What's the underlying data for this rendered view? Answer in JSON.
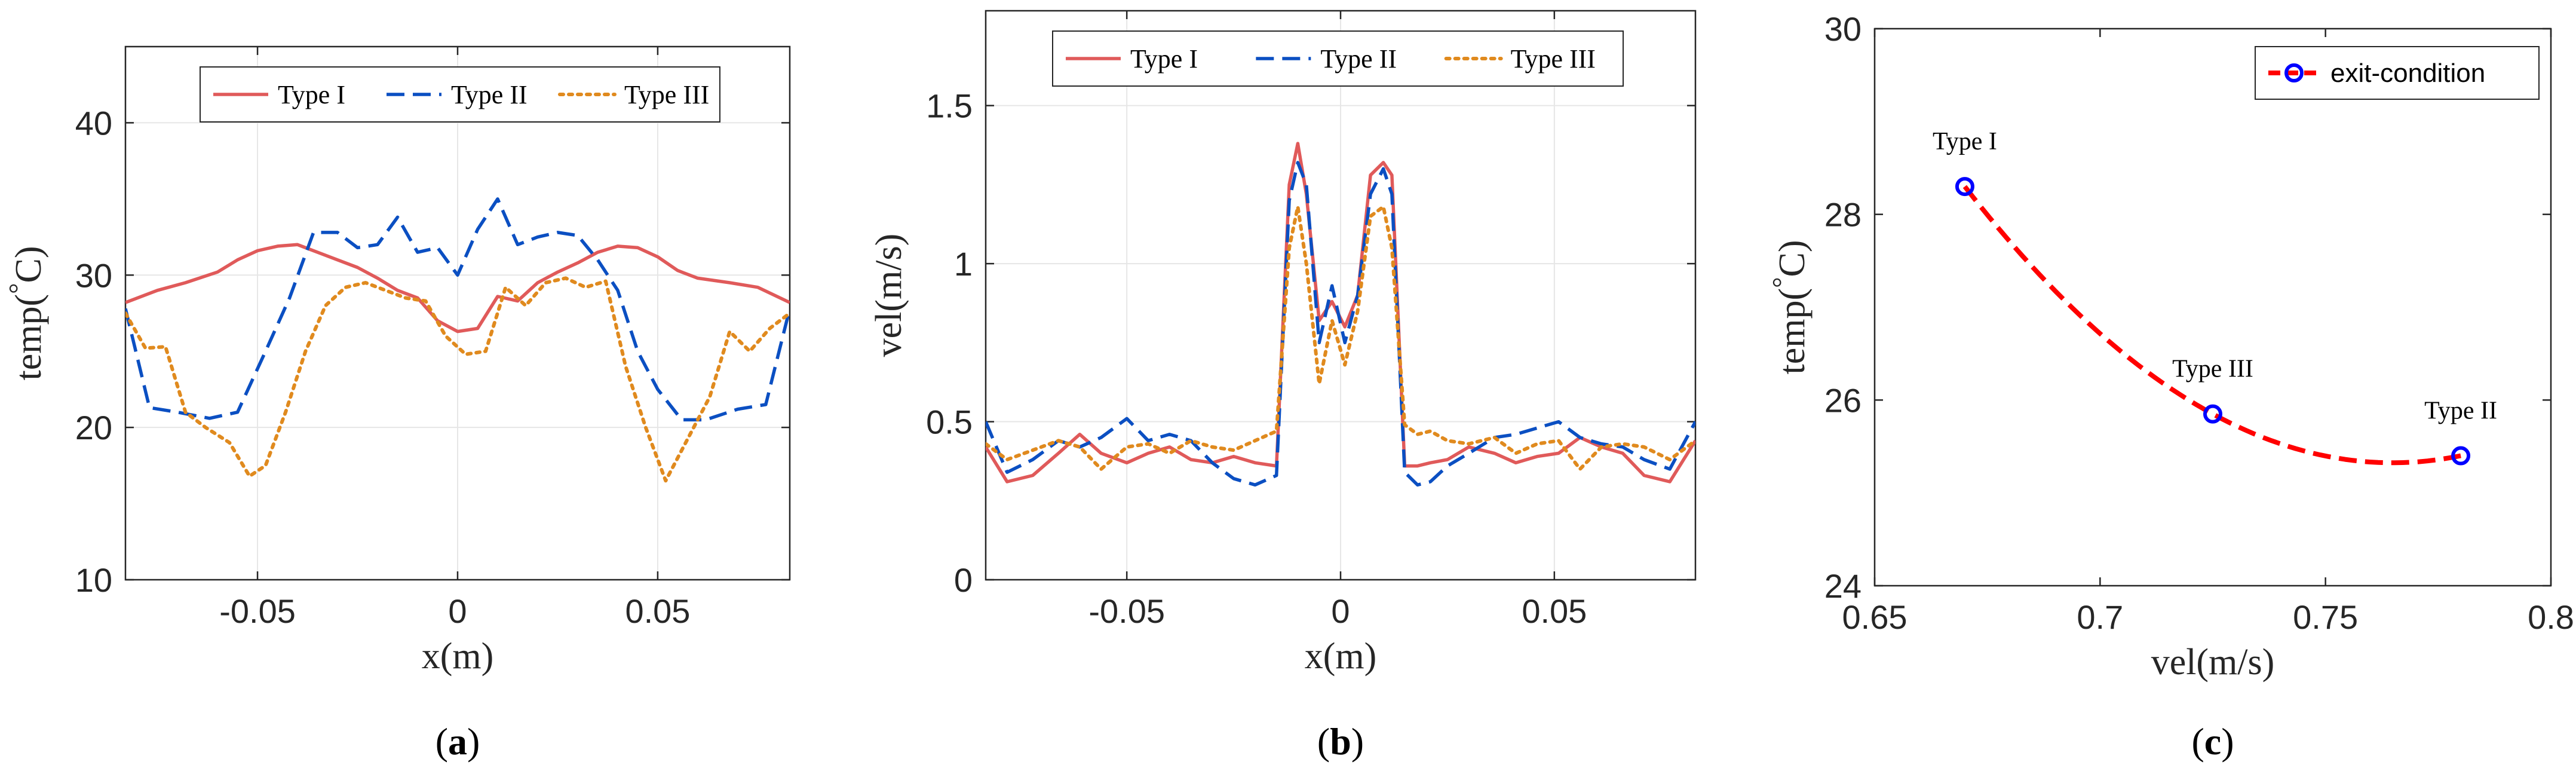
{
  "chart_data": [
    {
      "type": "line",
      "caption": "a",
      "xlabel": "x(m)",
      "ylabel": "temp(°C)",
      "ylabel_main": "temp(",
      "ylabel_degree": "°",
      "ylabel_unit": "C)",
      "xlim": [
        -0.083,
        0.083
      ],
      "ylim": [
        10,
        45
      ],
      "xticks": [
        -0.05,
        0,
        0.05
      ],
      "xtick_labels": [
        "-0.05",
        "0",
        "0.05"
      ],
      "yticks": [
        10,
        20,
        30,
        40
      ],
      "ytick_labels": [
        "10",
        "20",
        "30",
        "40"
      ],
      "grid": true,
      "legend_position": "top-center",
      "series": [
        {
          "name": "Type I",
          "color": "#e05a5a",
          "style": "solid",
          "x": [
            -0.083,
            -0.075,
            -0.068,
            -0.06,
            -0.055,
            -0.05,
            -0.045,
            -0.04,
            -0.035,
            -0.03,
            -0.025,
            -0.02,
            -0.015,
            -0.01,
            -0.005,
            0,
            0.005,
            0.01,
            0.015,
            0.02,
            0.025,
            0.03,
            0.035,
            0.04,
            0.045,
            0.05,
            0.055,
            0.06,
            0.068,
            0.075,
            0.083
          ],
          "values": [
            28.2,
            29.0,
            29.5,
            30.2,
            31.0,
            31.6,
            31.9,
            32.0,
            31.5,
            31.0,
            30.5,
            29.8,
            29.0,
            28.5,
            27.0,
            26.3,
            26.5,
            28.6,
            28.3,
            29.5,
            30.2,
            30.8,
            31.5,
            31.9,
            31.8,
            31.2,
            30.3,
            29.8,
            29.5,
            29.2,
            28.2
          ]
        },
        {
          "name": "Type II",
          "color": "#0b4fc2",
          "style": "dashed",
          "x": [
            -0.083,
            -0.077,
            -0.07,
            -0.062,
            -0.055,
            -0.048,
            -0.042,
            -0.036,
            -0.03,
            -0.025,
            -0.02,
            -0.015,
            -0.01,
            -0.005,
            0,
            0.005,
            0.01,
            0.015,
            0.02,
            0.025,
            0.03,
            0.035,
            0.04,
            0.045,
            0.05,
            0.056,
            0.062,
            0.07,
            0.077,
            0.083
          ],
          "values": [
            27.8,
            21.3,
            21.0,
            20.6,
            21.0,
            25.0,
            28.5,
            32.8,
            32.8,
            31.8,
            32.0,
            33.8,
            31.5,
            31.8,
            30.0,
            33.0,
            35.0,
            32.0,
            32.5,
            32.8,
            32.6,
            31.0,
            29.0,
            25.0,
            22.5,
            20.5,
            20.5,
            21.2,
            21.5,
            27.8
          ]
        },
        {
          "name": "Type III",
          "color": "#e08a1e",
          "style": "dotted",
          "x": [
            -0.083,
            -0.078,
            -0.073,
            -0.068,
            -0.063,
            -0.057,
            -0.052,
            -0.048,
            -0.043,
            -0.038,
            -0.033,
            -0.028,
            -0.023,
            -0.018,
            -0.013,
            -0.008,
            -0.003,
            0.002,
            0.007,
            0.012,
            0.017,
            0.022,
            0.027,
            0.032,
            0.037,
            0.042,
            0.047,
            0.052,
            0.057,
            0.063,
            0.068,
            0.073,
            0.078,
            0.083
          ],
          "values": [
            27.5,
            25.2,
            25.3,
            21.0,
            20.0,
            19.0,
            16.8,
            17.5,
            21.0,
            25.0,
            28.0,
            29.2,
            29.5,
            29.0,
            28.5,
            28.3,
            26.0,
            24.8,
            25.0,
            29.2,
            28.0,
            29.5,
            29.8,
            29.2,
            29.6,
            24.0,
            20.0,
            16.5,
            19.0,
            22.0,
            26.3,
            25.0,
            26.5,
            27.5
          ]
        }
      ]
    },
    {
      "type": "line",
      "caption": "b",
      "xlabel": "x(m)",
      "ylabel": "vel(m/s)",
      "xlim": [
        -0.083,
        0.083
      ],
      "ylim": [
        0,
        1.8
      ],
      "xticks": [
        -0.05,
        0,
        0.05
      ],
      "xtick_labels": [
        "-0.05",
        "0",
        "0.05"
      ],
      "yticks": [
        0,
        0.5,
        1,
        1.5
      ],
      "ytick_labels": [
        "0",
        "0.5",
        "1",
        "1.5"
      ],
      "grid": true,
      "legend_position": "top-center",
      "series": [
        {
          "name": "Type I",
          "color": "#e05a5a",
          "style": "solid",
          "x": [
            -0.083,
            -0.078,
            -0.072,
            -0.066,
            -0.061,
            -0.056,
            -0.05,
            -0.045,
            -0.04,
            -0.035,
            -0.03,
            -0.025,
            -0.02,
            -0.015,
            -0.012,
            -0.01,
            -0.008,
            -0.005,
            -0.002,
            0.001,
            0.004,
            0.007,
            0.01,
            0.012,
            0.015,
            0.018,
            0.021,
            0.025,
            0.03,
            0.036,
            0.041,
            0.046,
            0.051,
            0.056,
            0.061,
            0.066,
            0.071,
            0.077,
            0.083
          ],
          "values": [
            0.42,
            0.31,
            0.33,
            0.4,
            0.46,
            0.4,
            0.37,
            0.4,
            0.42,
            0.38,
            0.37,
            0.39,
            0.37,
            0.36,
            1.25,
            1.38,
            1.22,
            0.82,
            0.88,
            0.8,
            0.9,
            1.28,
            1.32,
            1.28,
            0.36,
            0.36,
            0.37,
            0.38,
            0.42,
            0.4,
            0.37,
            0.39,
            0.4,
            0.45,
            0.42,
            0.4,
            0.33,
            0.31,
            0.44
          ]
        },
        {
          "name": "Type II",
          "color": "#0b4fc2",
          "style": "dashed",
          "x": [
            -0.083,
            -0.078,
            -0.072,
            -0.066,
            -0.061,
            -0.056,
            -0.05,
            -0.045,
            -0.04,
            -0.035,
            -0.03,
            -0.025,
            -0.02,
            -0.015,
            -0.012,
            -0.01,
            -0.008,
            -0.005,
            -0.002,
            0.001,
            0.004,
            0.007,
            0.01,
            0.012,
            0.015,
            0.018,
            0.021,
            0.025,
            0.03,
            0.036,
            0.041,
            0.046,
            0.051,
            0.056,
            0.061,
            0.066,
            0.071,
            0.077,
            0.083
          ],
          "values": [
            0.5,
            0.34,
            0.38,
            0.44,
            0.42,
            0.45,
            0.51,
            0.44,
            0.46,
            0.44,
            0.37,
            0.32,
            0.3,
            0.33,
            1.2,
            1.32,
            1.25,
            0.75,
            0.93,
            0.75,
            0.9,
            1.22,
            1.3,
            1.22,
            0.34,
            0.3,
            0.31,
            0.36,
            0.4,
            0.45,
            0.46,
            0.48,
            0.5,
            0.45,
            0.43,
            0.42,
            0.38,
            0.35,
            0.5
          ]
        },
        {
          "name": "Type III",
          "color": "#e08a1e",
          "style": "dotted",
          "x": [
            -0.083,
            -0.078,
            -0.072,
            -0.066,
            -0.061,
            -0.056,
            -0.05,
            -0.045,
            -0.04,
            -0.035,
            -0.03,
            -0.025,
            -0.02,
            -0.015,
            -0.012,
            -0.01,
            -0.008,
            -0.005,
            -0.002,
            0.001,
            0.004,
            0.007,
            0.01,
            0.012,
            0.015,
            0.018,
            0.021,
            0.025,
            0.03,
            0.036,
            0.041,
            0.046,
            0.051,
            0.056,
            0.061,
            0.066,
            0.071,
            0.077,
            0.083
          ],
          "values": [
            0.43,
            0.38,
            0.41,
            0.44,
            0.42,
            0.35,
            0.42,
            0.43,
            0.4,
            0.44,
            0.42,
            0.41,
            0.44,
            0.47,
            1.05,
            1.18,
            1.0,
            0.62,
            0.82,
            0.68,
            0.85,
            1.15,
            1.18,
            1.05,
            0.49,
            0.46,
            0.47,
            0.44,
            0.43,
            0.45,
            0.4,
            0.43,
            0.44,
            0.35,
            0.42,
            0.43,
            0.42,
            0.38,
            0.44
          ]
        }
      ]
    },
    {
      "type": "line",
      "caption": "c",
      "xlabel": "vel(m/s)",
      "ylabel": "temp(°C)",
      "ylabel_main": "temp(",
      "ylabel_degree": "°",
      "ylabel_unit": "C)",
      "xlim": [
        0.65,
        0.8
      ],
      "ylim": [
        24,
        30
      ],
      "xticks": [
        0.65,
        0.7,
        0.75,
        0.8
      ],
      "xtick_labels": [
        "0.65",
        "0.7",
        "0.75",
        "0.8"
      ],
      "yticks": [
        24,
        26,
        28,
        30
      ],
      "ytick_labels": [
        "24",
        "26",
        "28",
        "30"
      ],
      "grid": false,
      "legend_position": "top-right",
      "series": [
        {
          "name": "exit-condition",
          "color": "#ff0000",
          "marker_color": "#0000ff",
          "style": "dashed",
          "x": [
            0.67,
            0.725,
            0.78
          ],
          "values": [
            28.3,
            25.85,
            25.4
          ]
        }
      ],
      "annotations": [
        {
          "text": "Type I",
          "x": 0.67,
          "y": 28.3
        },
        {
          "text": "Type III",
          "x": 0.725,
          "y": 25.85
        },
        {
          "text": "Type II",
          "x": 0.78,
          "y": 25.4
        }
      ]
    }
  ]
}
